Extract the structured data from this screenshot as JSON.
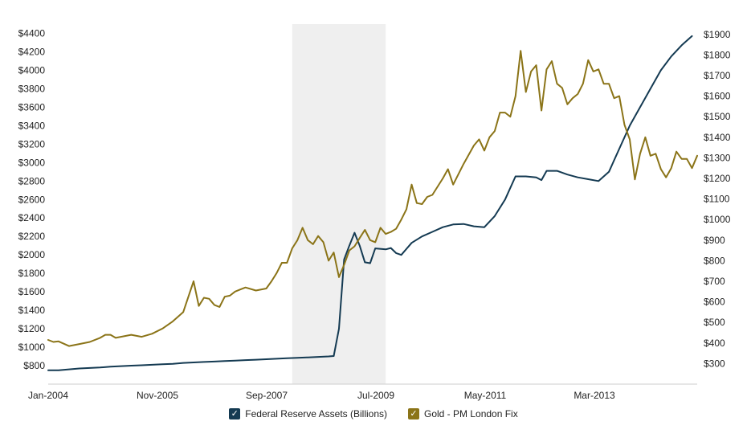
{
  "chart_data": {
    "type": "line",
    "title": "",
    "xlabel": "",
    "ylabel_left": "",
    "ylabel_right": "",
    "x_tick_labels": [
      "Jan-2004",
      "Nov-2005",
      "Sep-2007",
      "Jul-2009",
      "May-2011",
      "Mar-2013"
    ],
    "x_range": [
      "2004-01",
      "2014-06"
    ],
    "y_left": {
      "range": [
        600,
        4500
      ],
      "ticks": [
        800,
        1000,
        1200,
        1400,
        1600,
        1800,
        2000,
        2200,
        2400,
        2600,
        2800,
        3000,
        3200,
        3400,
        3600,
        3800,
        4000,
        4200,
        4400
      ],
      "tick_labels": [
        "$800",
        "$1000",
        "$1200",
        "$1400",
        "$1600",
        "$1800",
        "$2000",
        "$2200",
        "$2400",
        "$2600",
        "$2800",
        "$3000",
        "$3200",
        "$3400",
        "$3600",
        "$3800",
        "$4000",
        "$4200",
        "$4400"
      ]
    },
    "y_right": {
      "range": [
        200,
        1950
      ],
      "ticks": [
        300,
        400,
        500,
        600,
        700,
        800,
        900,
        1000,
        1100,
        1200,
        1300,
        1400,
        1500,
        1600,
        1700,
        1800,
        1900
      ],
      "tick_labels": [
        "$300",
        "$400",
        "$500",
        "$600",
        "$700",
        "$800",
        "$900",
        "$1000",
        "$1100",
        "$1200",
        "$1300",
        "$1400",
        "$1500",
        "$1600",
        "$1700",
        "$1800",
        "$1900"
      ]
    },
    "shaded_region": {
      "from": "2007-12",
      "to": "2009-06",
      "color": "#efefef"
    },
    "grid": false,
    "legend_position": "bottom",
    "series": [
      {
        "name": "Federal Reserve Assets (Billions)",
        "axis": "left",
        "color": "#143a52",
        "points": [
          [
            "2004-01",
            750
          ],
          [
            "2004-03",
            750
          ],
          [
            "2004-05",
            760
          ],
          [
            "2004-07",
            770
          ],
          [
            "2004-09",
            775
          ],
          [
            "2004-11",
            780
          ],
          [
            "2005-01",
            790
          ],
          [
            "2005-03",
            795
          ],
          [
            "2005-05",
            800
          ],
          [
            "2005-07",
            805
          ],
          [
            "2005-09",
            810
          ],
          [
            "2005-11",
            815
          ],
          [
            "2006-01",
            820
          ],
          [
            "2006-03",
            830
          ],
          [
            "2006-05",
            835
          ],
          [
            "2006-07",
            840
          ],
          [
            "2006-09",
            845
          ],
          [
            "2006-11",
            850
          ],
          [
            "2007-01",
            855
          ],
          [
            "2007-03",
            860
          ],
          [
            "2007-05",
            865
          ],
          [
            "2007-07",
            870
          ],
          [
            "2007-09",
            875
          ],
          [
            "2007-11",
            880
          ],
          [
            "2008-01",
            885
          ],
          [
            "2008-03",
            890
          ],
          [
            "2008-05",
            895
          ],
          [
            "2008-07",
            900
          ],
          [
            "2008-08",
            905
          ],
          [
            "2008-09",
            1200
          ],
          [
            "2008-10",
            1950
          ],
          [
            "2008-11",
            2100
          ],
          [
            "2008-12",
            2240
          ],
          [
            "2009-01",
            2100
          ],
          [
            "2009-02",
            1920
          ],
          [
            "2009-03",
            1910
          ],
          [
            "2009-04",
            2070
          ],
          [
            "2009-06",
            2060
          ],
          [
            "2009-07",
            2075
          ],
          [
            "2009-08",
            2020
          ],
          [
            "2009-09",
            2000
          ],
          [
            "2009-11",
            2130
          ],
          [
            "2010-01",
            2200
          ],
          [
            "2010-03",
            2250
          ],
          [
            "2010-05",
            2300
          ],
          [
            "2010-07",
            2330
          ],
          [
            "2010-09",
            2335
          ],
          [
            "2010-11",
            2310
          ],
          [
            "2011-01",
            2300
          ],
          [
            "2011-03",
            2420
          ],
          [
            "2011-05",
            2600
          ],
          [
            "2011-07",
            2850
          ],
          [
            "2011-09",
            2850
          ],
          [
            "2011-11",
            2840
          ],
          [
            "2011-12",
            2810
          ],
          [
            "2012-01",
            2910
          ],
          [
            "2012-03",
            2910
          ],
          [
            "2012-05",
            2870
          ],
          [
            "2012-07",
            2840
          ],
          [
            "2012-09",
            2820
          ],
          [
            "2012-11",
            2800
          ],
          [
            "2013-01",
            2900
          ],
          [
            "2013-03",
            3150
          ],
          [
            "2013-05",
            3400
          ],
          [
            "2013-07",
            3600
          ],
          [
            "2013-09",
            3800
          ],
          [
            "2013-11",
            4000
          ],
          [
            "2014-01",
            4150
          ],
          [
            "2014-03",
            4270
          ],
          [
            "2014-05",
            4370
          ]
        ]
      },
      {
        "name": "Gold - PM London Fix",
        "axis": "right",
        "color": "#8b7418",
        "points": [
          [
            "2004-01",
            415
          ],
          [
            "2004-02",
            405
          ],
          [
            "2004-03",
            408
          ],
          [
            "2004-05",
            385
          ],
          [
            "2004-07",
            395
          ],
          [
            "2004-09",
            405
          ],
          [
            "2004-11",
            425
          ],
          [
            "2004-12",
            440
          ],
          [
            "2005-01",
            440
          ],
          [
            "2005-02",
            425
          ],
          [
            "2005-03",
            430
          ],
          [
            "2005-05",
            440
          ],
          [
            "2005-07",
            430
          ],
          [
            "2005-09",
            445
          ],
          [
            "2005-11",
            470
          ],
          [
            "2006-01",
            505
          ],
          [
            "2006-03",
            550
          ],
          [
            "2006-05",
            700
          ],
          [
            "2006-06",
            580
          ],
          [
            "2006-07",
            620
          ],
          [
            "2006-08",
            615
          ],
          [
            "2006-09",
            585
          ],
          [
            "2006-10",
            575
          ],
          [
            "2006-11",
            625
          ],
          [
            "2006-12",
            630
          ],
          [
            "2007-01",
            650
          ],
          [
            "2007-02",
            660
          ],
          [
            "2007-03",
            670
          ],
          [
            "2007-05",
            655
          ],
          [
            "2007-07",
            665
          ],
          [
            "2007-08",
            700
          ],
          [
            "2007-09",
            740
          ],
          [
            "2007-10",
            790
          ],
          [
            "2007-11",
            790
          ],
          [
            "2007-12",
            860
          ],
          [
            "2008-01",
            900
          ],
          [
            "2008-02",
            960
          ],
          [
            "2008-03",
            900
          ],
          [
            "2008-04",
            880
          ],
          [
            "2008-05",
            920
          ],
          [
            "2008-06",
            890
          ],
          [
            "2008-07",
            800
          ],
          [
            "2008-08",
            840
          ],
          [
            "2008-09",
            720
          ],
          [
            "2008-10",
            780
          ],
          [
            "2008-11",
            850
          ],
          [
            "2008-12",
            870
          ],
          [
            "2009-01",
            910
          ],
          [
            "2009-02",
            950
          ],
          [
            "2009-03",
            900
          ],
          [
            "2009-04",
            890
          ],
          [
            "2009-05",
            960
          ],
          [
            "2009-06",
            930
          ],
          [
            "2009-07",
            940
          ],
          [
            "2009-08",
            955
          ],
          [
            "2009-09",
            1000
          ],
          [
            "2009-10",
            1050
          ],
          [
            "2009-11",
            1170
          ],
          [
            "2009-12",
            1080
          ],
          [
            "2010-01",
            1075
          ],
          [
            "2010-02",
            1110
          ],
          [
            "2010-03",
            1120
          ],
          [
            "2010-05",
            1200
          ],
          [
            "2010-06",
            1245
          ],
          [
            "2010-07",
            1170
          ],
          [
            "2010-09",
            1270
          ],
          [
            "2010-11",
            1360
          ],
          [
            "2010-12",
            1390
          ],
          [
            "2011-01",
            1335
          ],
          [
            "2011-02",
            1400
          ],
          [
            "2011-03",
            1430
          ],
          [
            "2011-04",
            1520
          ],
          [
            "2011-05",
            1520
          ],
          [
            "2011-06",
            1500
          ],
          [
            "2011-07",
            1600
          ],
          [
            "2011-08",
            1820
          ],
          [
            "2011-09",
            1620
          ],
          [
            "2011-10",
            1720
          ],
          [
            "2011-11",
            1750
          ],
          [
            "2011-12",
            1530
          ],
          [
            "2012-01",
            1730
          ],
          [
            "2012-02",
            1770
          ],
          [
            "2012-03",
            1660
          ],
          [
            "2012-04",
            1640
          ],
          [
            "2012-05",
            1560
          ],
          [
            "2012-06",
            1590
          ],
          [
            "2012-07",
            1610
          ],
          [
            "2012-08",
            1660
          ],
          [
            "2012-09",
            1775
          ],
          [
            "2012-10",
            1720
          ],
          [
            "2012-11",
            1730
          ],
          [
            "2012-12",
            1660
          ],
          [
            "2013-01",
            1660
          ],
          [
            "2013-02",
            1590
          ],
          [
            "2013-03",
            1600
          ],
          [
            "2013-04",
            1460
          ],
          [
            "2013-05",
            1390
          ],
          [
            "2013-06",
            1195
          ],
          [
            "2013-07",
            1320
          ],
          [
            "2013-08",
            1400
          ],
          [
            "2013-09",
            1310
          ],
          [
            "2013-10",
            1320
          ],
          [
            "2013-11",
            1245
          ],
          [
            "2013-12",
            1205
          ],
          [
            "2014-01",
            1250
          ],
          [
            "2014-02",
            1330
          ],
          [
            "2014-03",
            1295
          ],
          [
            "2014-04",
            1295
          ],
          [
            "2014-05",
            1250
          ],
          [
            "2014-06",
            1310
          ]
        ]
      }
    ]
  }
}
